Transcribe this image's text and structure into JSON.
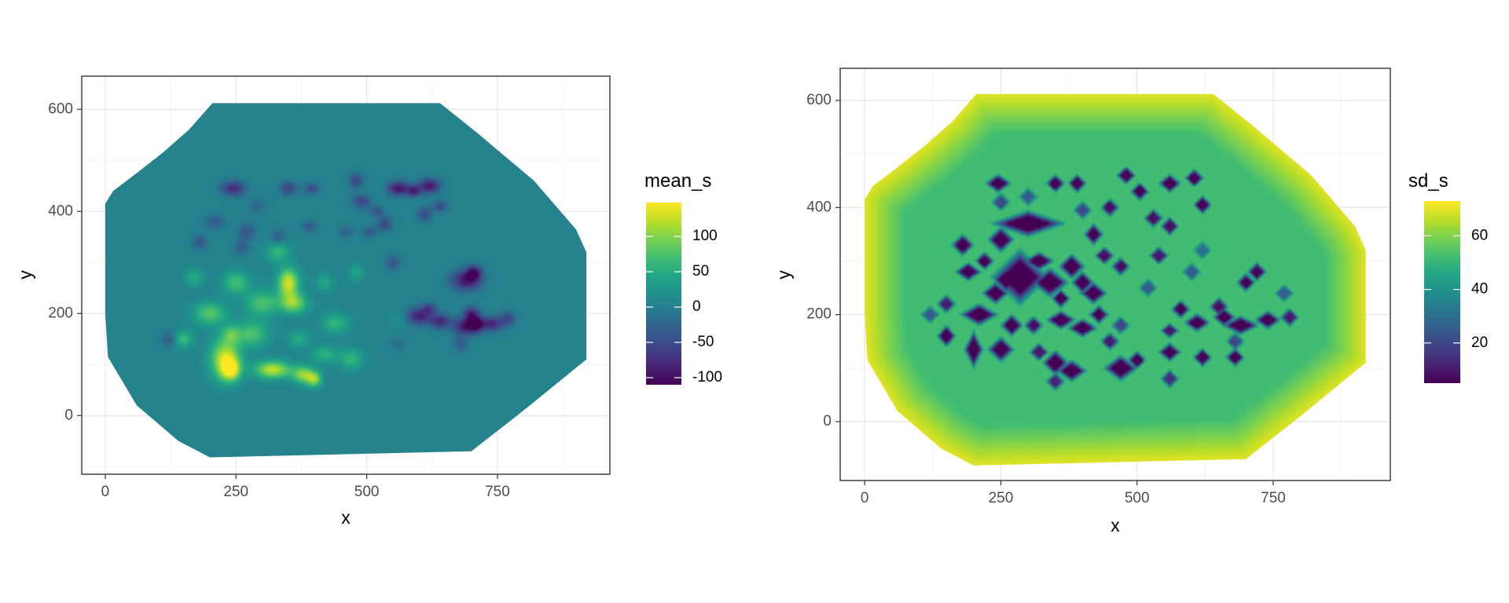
{
  "chart_data": [
    {
      "type": "heatmap",
      "xlabel": "x",
      "ylabel": "y",
      "xlim": [
        -45,
        965
      ],
      "ylim": [
        -115,
        665
      ],
      "xticks": [
        0,
        250,
        500,
        750
      ],
      "yticks": [
        0,
        200,
        400,
        600
      ],
      "xtick_labels": [
        "0",
        "250",
        "500",
        "750"
      ],
      "ytick_labels": [
        "0",
        "200",
        "400",
        "600"
      ],
      "grid": true,
      "legend": {
        "title": "mean_s",
        "placement": "right",
        "range": [
          -110,
          148
        ],
        "breaks": [
          100,
          50,
          0,
          -50,
          -100
        ],
        "labels": [
          "100",
          "50",
          "0",
          "-50",
          "-100"
        ]
      },
      "domain_hull": [
        [
          0,
          415
        ],
        [
          15,
          440
        ],
        [
          60,
          475
        ],
        [
          110,
          515
        ],
        [
          160,
          560
        ],
        [
          205,
          612
        ],
        [
          640,
          612
        ],
        [
          710,
          555
        ],
        [
          820,
          460
        ],
        [
          900,
          365
        ],
        [
          920,
          320
        ],
        [
          920,
          110
        ],
        [
          800,
          10
        ],
        [
          700,
          -70
        ],
        [
          200,
          -82
        ],
        [
          140,
          -50
        ],
        [
          60,
          20
        ],
        [
          5,
          115
        ],
        [
          0,
          200
        ]
      ],
      "baseline_value": 5,
      "features": [
        [
          230,
          110,
          20,
          28,
          128
        ],
        [
          240,
          90,
          12,
          14,
          110
        ],
        [
          300,
          220,
          22,
          18,
          70
        ],
        [
          350,
          260,
          14,
          20,
          128
        ],
        [
          360,
          220,
          18,
          14,
          95
        ],
        [
          320,
          90,
          24,
          12,
          120
        ],
        [
          380,
          80,
          16,
          12,
          100
        ],
        [
          400,
          70,
          10,
          10,
          85
        ],
        [
          200,
          200,
          22,
          16,
          75
        ],
        [
          150,
          150,
          12,
          12,
          60
        ],
        [
          250,
          260,
          18,
          16,
          65
        ],
        [
          280,
          160,
          22,
          18,
          70
        ],
        [
          330,
          320,
          16,
          14,
          55
        ],
        [
          440,
          180,
          18,
          14,
          55
        ],
        [
          470,
          110,
          16,
          14,
          55
        ],
        [
          420,
          120,
          18,
          12,
          50
        ],
        [
          170,
          270,
          12,
          12,
          45
        ],
        [
          240,
          160,
          12,
          12,
          55
        ],
        [
          420,
          260,
          12,
          12,
          40
        ],
        [
          480,
          280,
          10,
          12,
          35
        ],
        [
          370,
          150,
          14,
          12,
          45
        ],
        [
          560,
          190,
          12,
          12,
          15
        ],
        [
          245,
          445,
          16,
          10,
          -85
        ],
        [
          350,
          445,
          12,
          10,
          -60
        ],
        [
          395,
          445,
          10,
          8,
          -55
        ],
        [
          480,
          460,
          10,
          10,
          -60
        ],
        [
          490,
          420,
          12,
          10,
          -60
        ],
        [
          560,
          445,
          14,
          10,
          -100
        ],
        [
          620,
          450,
          14,
          10,
          -100
        ],
        [
          590,
          440,
          10,
          8,
          -85
        ],
        [
          535,
          375,
          10,
          10,
          -60
        ],
        [
          520,
          400,
          10,
          8,
          -45
        ],
        [
          610,
          395,
          10,
          10,
          -55
        ],
        [
          640,
          410,
          10,
          8,
          -55
        ],
        [
          460,
          360,
          10,
          8,
          -35
        ],
        [
          505,
          360,
          10,
          8,
          -45
        ],
        [
          390,
          370,
          10,
          8,
          -40
        ],
        [
          330,
          350,
          10,
          10,
          -40
        ],
        [
          270,
          360,
          12,
          12,
          -45
        ],
        [
          210,
          380,
          14,
          10,
          -40
        ],
        [
          180,
          340,
          10,
          10,
          -45
        ],
        [
          550,
          300,
          10,
          10,
          -45
        ],
        [
          690,
          265,
          20,
          14,
          -100
        ],
        [
          705,
          280,
          10,
          10,
          -90
        ],
        [
          600,
          195,
          16,
          12,
          -90
        ],
        [
          640,
          185,
          14,
          10,
          -85
        ],
        [
          690,
          175,
          18,
          12,
          -100
        ],
        [
          710,
          180,
          10,
          10,
          -95
        ],
        [
          740,
          180,
          14,
          10,
          -85
        ],
        [
          700,
          200,
          10,
          10,
          -85
        ],
        [
          770,
          190,
          10,
          10,
          -60
        ],
        [
          680,
          140,
          10,
          10,
          -40
        ],
        [
          560,
          140,
          10,
          8,
          -25
        ],
        [
          620,
          210,
          10,
          8,
          -55
        ],
        [
          120,
          150,
          10,
          10,
          -40
        ],
        [
          260,
          330,
          10,
          10,
          -40
        ],
        [
          290,
          410,
          12,
          10,
          -30
        ]
      ]
    },
    {
      "type": "heatmap",
      "xlabel": "x",
      "ylabel": "y",
      "xlim": [
        -45,
        965
      ],
      "ylim": [
        -110,
        660
      ],
      "xticks": [
        0,
        250,
        500,
        750
      ],
      "yticks": [
        0,
        200,
        400,
        600
      ],
      "xtick_labels": [
        "0",
        "250",
        "500",
        "750"
      ],
      "ytick_labels": [
        "0",
        "200",
        "400",
        "600"
      ],
      "grid": true,
      "legend": {
        "title": "sd_s",
        "placement": "right",
        "range": [
          5,
          73
        ],
        "breaks": [
          60,
          40,
          20
        ],
        "labels": [
          "60",
          "40",
          "20"
        ]
      },
      "domain_hull": [
        [
          0,
          415
        ],
        [
          15,
          440
        ],
        [
          60,
          475
        ],
        [
          110,
          515
        ],
        [
          160,
          560
        ],
        [
          205,
          612
        ],
        [
          640,
          612
        ],
        [
          710,
          555
        ],
        [
          820,
          460
        ],
        [
          900,
          365
        ],
        [
          920,
          320
        ],
        [
          920,
          110
        ],
        [
          800,
          10
        ],
        [
          700,
          -70
        ],
        [
          200,
          -82
        ],
        [
          140,
          -50
        ],
        [
          60,
          20
        ],
        [
          5,
          115
        ],
        [
          0,
          200
        ]
      ],
      "baseline_value": 52,
      "features": [
        [
          245,
          445,
          14,
          10,
          5
        ],
        [
          350,
          445,
          10,
          10,
          5
        ],
        [
          390,
          445,
          10,
          10,
          5
        ],
        [
          480,
          460,
          10,
          10,
          5
        ],
        [
          450,
          400,
          10,
          10,
          8
        ],
        [
          505,
          430,
          10,
          10,
          5
        ],
        [
          560,
          445,
          12,
          10,
          5
        ],
        [
          605,
          455,
          10,
          10,
          5
        ],
        [
          620,
          405,
          10,
          10,
          5
        ],
        [
          530,
          380,
          10,
          10,
          8
        ],
        [
          560,
          365,
          10,
          10,
          8
        ],
        [
          420,
          350,
          10,
          12,
          5
        ],
        [
          440,
          310,
          10,
          10,
          8
        ],
        [
          540,
          310,
          10,
          10,
          10
        ],
        [
          300,
          370,
          40,
          14,
          5
        ],
        [
          250,
          340,
          14,
          14,
          5
        ],
        [
          180,
          330,
          12,
          12,
          5
        ],
        [
          190,
          280,
          14,
          10,
          5
        ],
        [
          220,
          300,
          10,
          10,
          5
        ],
        [
          240,
          240,
          14,
          12,
          5
        ],
        [
          260,
          265,
          14,
          14,
          5
        ],
        [
          285,
          270,
          30,
          30,
          5
        ],
        [
          340,
          260,
          20,
          16,
          5
        ],
        [
          380,
          290,
          14,
          14,
          5
        ],
        [
          400,
          260,
          12,
          12,
          5
        ],
        [
          420,
          240,
          14,
          12,
          5
        ],
        [
          470,
          290,
          10,
          10,
          8
        ],
        [
          320,
          300,
          16,
          10,
          5
        ],
        [
          360,
          230,
          10,
          10,
          5
        ],
        [
          210,
          200,
          20,
          12,
          5
        ],
        [
          270,
          180,
          12,
          12,
          5
        ],
        [
          310,
          180,
          10,
          10,
          8
        ],
        [
          360,
          190,
          16,
          10,
          5
        ],
        [
          400,
          175,
          16,
          10,
          5
        ],
        [
          430,
          200,
          10,
          10,
          5
        ],
        [
          150,
          160,
          10,
          12,
          5
        ],
        [
          200,
          135,
          10,
          20,
          5
        ],
        [
          250,
          135,
          14,
          14,
          5
        ],
        [
          350,
          110,
          14,
          14,
          5
        ],
        [
          380,
          95,
          16,
          12,
          5
        ],
        [
          470,
          100,
          18,
          14,
          5
        ],
        [
          500,
          115,
          10,
          10,
          5
        ],
        [
          560,
          130,
          12,
          10,
          5
        ],
        [
          620,
          120,
          10,
          10,
          5
        ],
        [
          680,
          120,
          10,
          10,
          5
        ],
        [
          610,
          185,
          14,
          10,
          5
        ],
        [
          660,
          195,
          12,
          10,
          5
        ],
        [
          690,
          180,
          20,
          10,
          5
        ],
        [
          740,
          190,
          14,
          10,
          5
        ],
        [
          780,
          195,
          10,
          10,
          10
        ],
        [
          700,
          260,
          10,
          10,
          5
        ],
        [
          720,
          280,
          10,
          10,
          5
        ],
        [
          580,
          210,
          10,
          10,
          5
        ],
        [
          650,
          215,
          10,
          10,
          8
        ],
        [
          560,
          170,
          10,
          8,
          10
        ],
        [
          450,
          150,
          10,
          10,
          10
        ],
        [
          320,
          130,
          10,
          10,
          10
        ],
        [
          150,
          220,
          10,
          10,
          10
        ],
        [
          560,
          80,
          10,
          10,
          15
        ],
        [
          350,
          75,
          10,
          10,
          12
        ],
        [
          470,
          180,
          10,
          10,
          20
        ],
        [
          520,
          250,
          10,
          10,
          25
        ],
        [
          600,
          280,
          10,
          10,
          25
        ],
        [
          680,
          150,
          10,
          10,
          20
        ],
        [
          250,
          410,
          10,
          10,
          20
        ],
        [
          400,
          395,
          10,
          10,
          20
        ],
        [
          300,
          420,
          10,
          10,
          25
        ],
        [
          120,
          200,
          10,
          10,
          25
        ],
        [
          770,
          240,
          10,
          10,
          25
        ],
        [
          620,
          320,
          10,
          10,
          30
        ]
      ]
    }
  ]
}
